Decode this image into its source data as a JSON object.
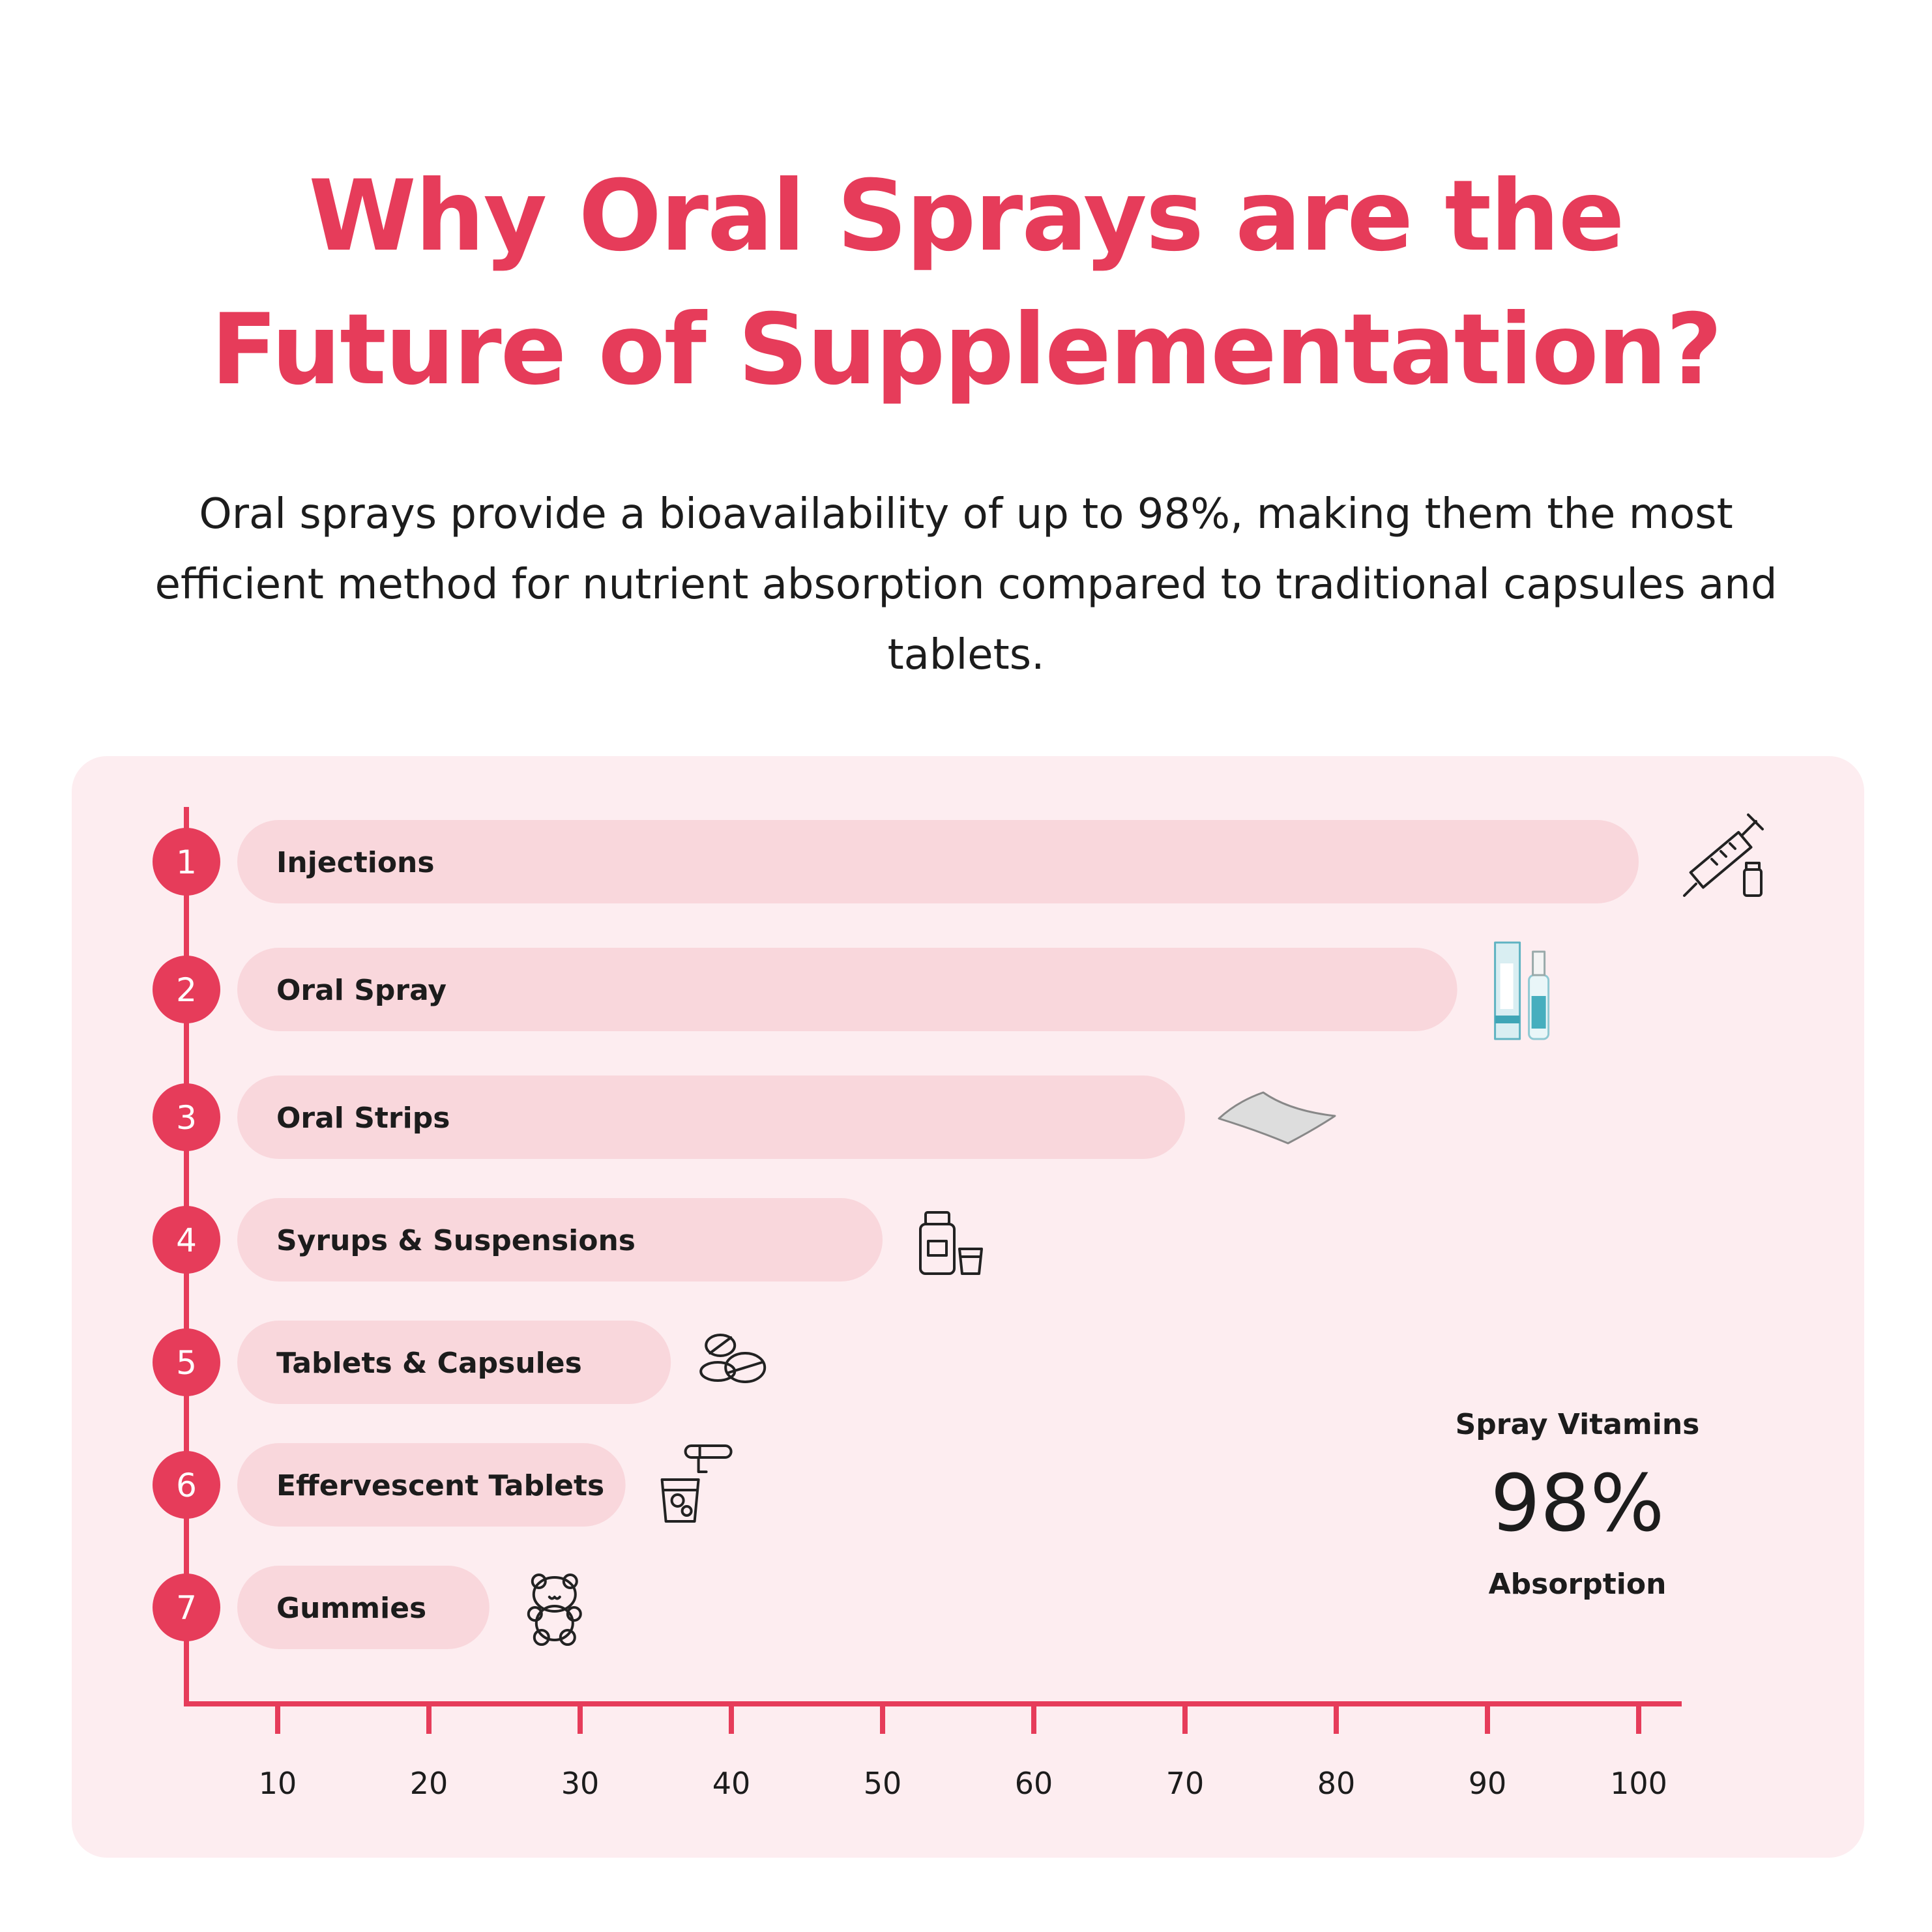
{
  "header": {
    "title_line1": "Why Oral Sprays are the",
    "title_line2": "Future of Supplementation?",
    "subtitle": "Oral sprays provide a bioavailability of up to 98%, making them the most efficient method for nutrient absorption compared to traditional capsules and tablets."
  },
  "colors": {
    "accent": "#e63c5a",
    "bar": "#f9d7dc",
    "panel": "#fdedf0",
    "text": "#1c1c1c"
  },
  "chart_data": {
    "type": "bar",
    "orientation": "horizontal",
    "title": "",
    "xlabel": "",
    "ylabel": "",
    "xlim": [
      0,
      100
    ],
    "x_ticks": [
      10,
      20,
      30,
      40,
      50,
      60,
      70,
      80,
      90,
      100
    ],
    "grid": false,
    "categories": [
      {
        "rank": "1",
        "label": "Injections",
        "value": 100,
        "icon": "syringe-icon"
      },
      {
        "rank": "2",
        "label": "Oral Spray",
        "value": 88,
        "icon": "spray-bottle-icon"
      },
      {
        "rank": "3",
        "label": "Oral Strips",
        "value": 70,
        "icon": "oral-strip-icon"
      },
      {
        "rank": "4",
        "label": "Syrups & Suspensions",
        "value": 50,
        "icon": "syrup-bottle-icon"
      },
      {
        "rank": "5",
        "label": "Tablets & Capsules",
        "value": 36,
        "icon": "tablets-icon"
      },
      {
        "rank": "6",
        "label": "Effervescent Tablets",
        "value": 33,
        "icon": "effervescent-glass-icon"
      },
      {
        "rank": "7",
        "label": "Gummies",
        "value": 24,
        "icon": "gummy-bear-icon"
      }
    ]
  },
  "callout": {
    "heading": "Spray Vitamins",
    "value": "98%",
    "footer": "Absorption"
  }
}
